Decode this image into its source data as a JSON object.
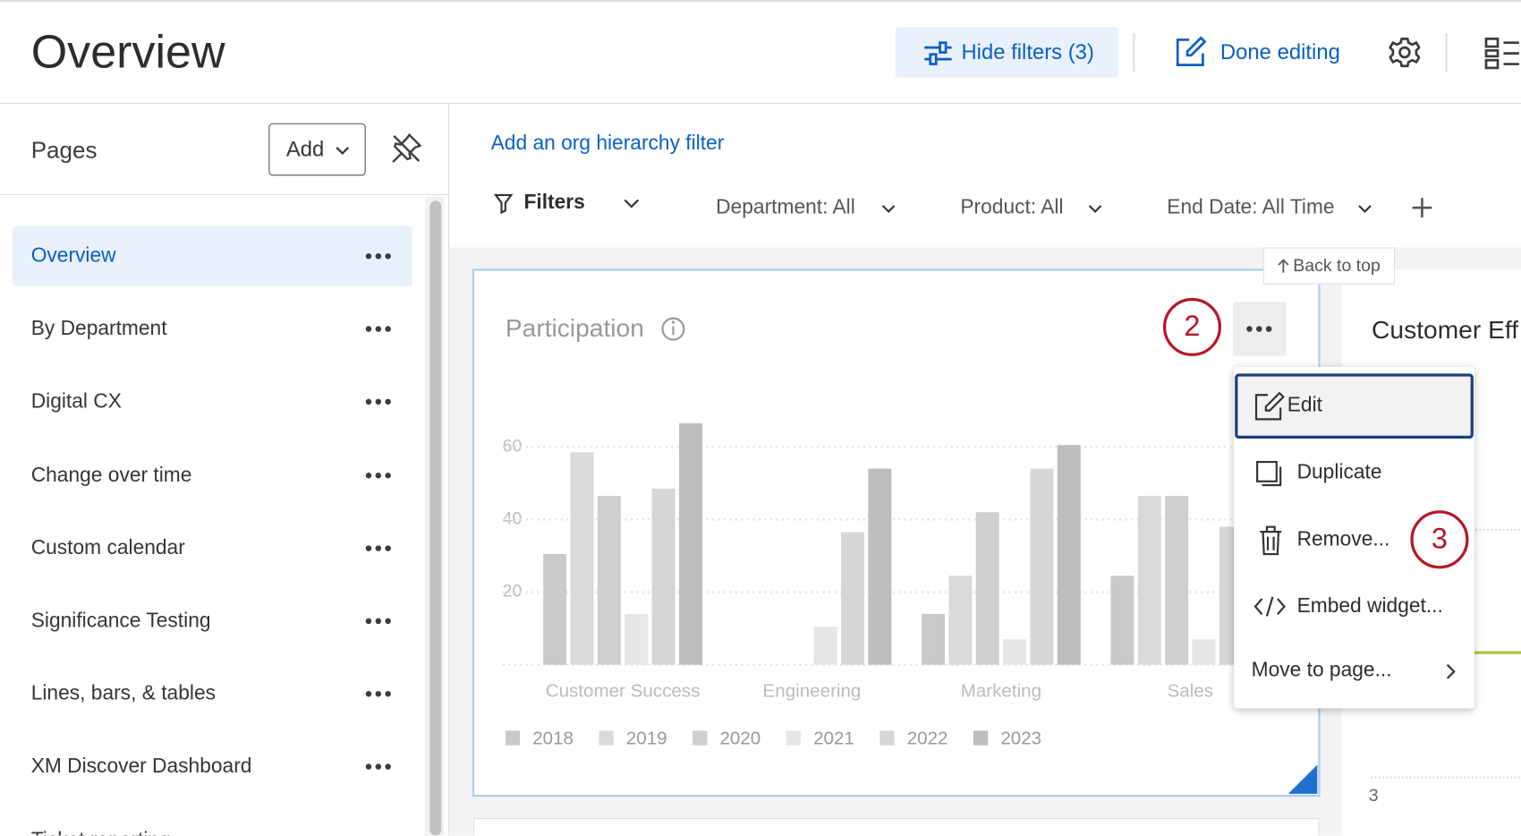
{
  "header": {
    "title": "Overview",
    "hide_filters": "Hide filters (3)",
    "done_editing": "Done editing"
  },
  "sidebar": {
    "title": "Pages",
    "add_button": "Add",
    "pages": [
      "Overview",
      "By Department",
      "Digital CX",
      "Change over time",
      "Custom calendar",
      "Significance Testing",
      "Lines, bars, & tables",
      "XM Discover Dashboard",
      "Ticket reporting"
    ]
  },
  "filters": {
    "org_hierarchy": "Add an org hierarchy filter",
    "label": "Filters",
    "items": [
      "Department: All",
      "Product: All",
      "End Date: All Time"
    ]
  },
  "back_to_top": "Back to top",
  "chart_data": {
    "type": "bar",
    "title": "Participation",
    "categories": [
      "Customer Success",
      "Engineering",
      "Marketing",
      "Sales"
    ],
    "series": [
      {
        "name": "2018",
        "color": "#c9c9c9",
        "values": [
          30.5,
          null,
          14,
          24.5
        ]
      },
      {
        "name": "2019",
        "color": "#d9d9d9",
        "values": [
          58.5,
          null,
          24.5,
          46.5
        ]
      },
      {
        "name": "2020",
        "color": "#cfcfcf",
        "values": [
          46.5,
          null,
          42,
          46.5
        ]
      },
      {
        "name": "2021",
        "color": "#e6e6e6",
        "values": [
          14,
          10.5,
          7,
          7
        ]
      },
      {
        "name": "2022",
        "color": "#d6d6d6",
        "values": [
          48.5,
          36.5,
          54,
          38
        ]
      },
      {
        "name": "2023",
        "color": "#bdbdbd",
        "values": [
          66.5,
          54,
          60.5,
          null
        ]
      }
    ],
    "ylim": [
      0,
      70
    ],
    "yticks": [
      20,
      40,
      60
    ],
    "grid": true,
    "legend": "bottom"
  },
  "side_widget": {
    "title": "Customer Eff",
    "tick": "3"
  },
  "context_menu": {
    "items": [
      "Edit",
      "Duplicate",
      "Remove...",
      "Embed widget...",
      "Move to page..."
    ]
  },
  "callouts": [
    "2",
    "3"
  ]
}
